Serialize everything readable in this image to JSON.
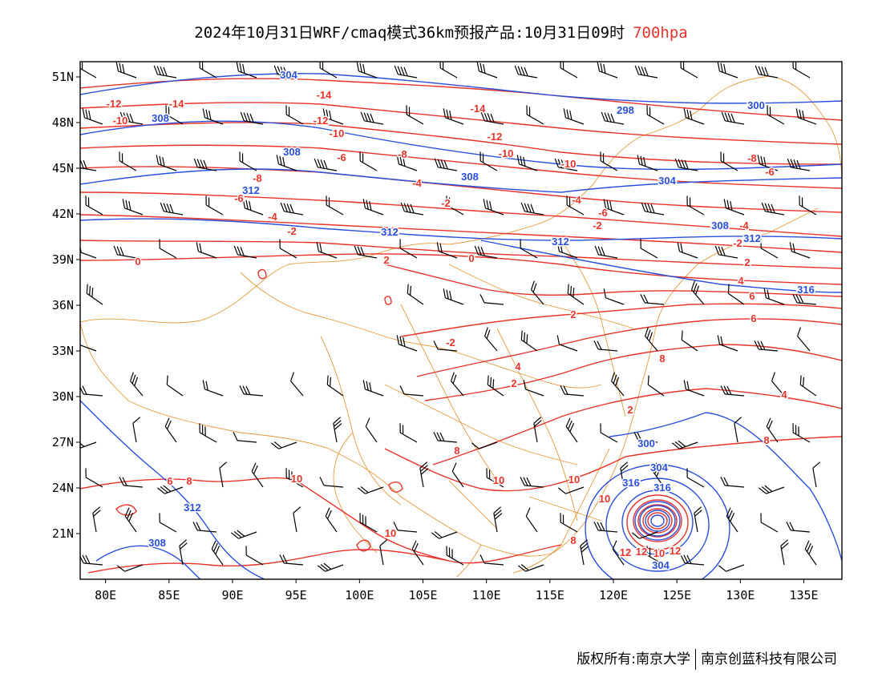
{
  "title": {
    "text": "2024年10月31日WRF/cmaq模式36km预报产品:10月31日09时",
    "level": "700hpa"
  },
  "colors": {
    "temperature_contour": "#e8332b",
    "height_contour": "#2a4fdc",
    "boundary": "#e39a3a",
    "wind_barb": "#000000",
    "level_text": "#e8332b"
  },
  "map": {
    "lon_range": [
      78,
      138
    ],
    "lat_range": [
      18,
      52
    ],
    "x_ticks": [
      "80E",
      "85E",
      "90E",
      "95E",
      "100E",
      "105E",
      "110E",
      "115E",
      "120E",
      "125E",
      "130E",
      "135E"
    ],
    "y_ticks": [
      "51N",
      "48N",
      "45N",
      "42N",
      "39N",
      "36N",
      "33N",
      "30N",
      "27N",
      "24N",
      "21N"
    ],
    "height_labels": [
      "304",
      "298",
      "300",
      "308",
      "308",
      "308",
      "304",
      "312",
      "312",
      "312",
      "308",
      "312",
      "316",
      "312",
      "308",
      "300",
      "304",
      "316",
      "316",
      "304"
    ],
    "temperature_labels": [
      "-12",
      "-14",
      "-14",
      "-14",
      "-10",
      "-12",
      "-10",
      "-12",
      "-10",
      "-6",
      "-8",
      "-10",
      "-8",
      "-6",
      "-8",
      "-6",
      "-4",
      "-2",
      "-4",
      "-6",
      "-4",
      "-2",
      "-2",
      "-4",
      "-2",
      "0",
      "2",
      "0",
      "2",
      "-2",
      "2",
      "4",
      "2",
      "4",
      "6",
      "6",
      "8",
      "2",
      "4",
      "8",
      "8",
      "6",
      "8",
      "10",
      "10",
      "10",
      "10",
      "10",
      "8",
      "10",
      "12",
      "12",
      "12"
    ]
  },
  "copyright": {
    "left": "版权所有:南京大学",
    "right": "南京创蓝科技有限公司"
  }
}
